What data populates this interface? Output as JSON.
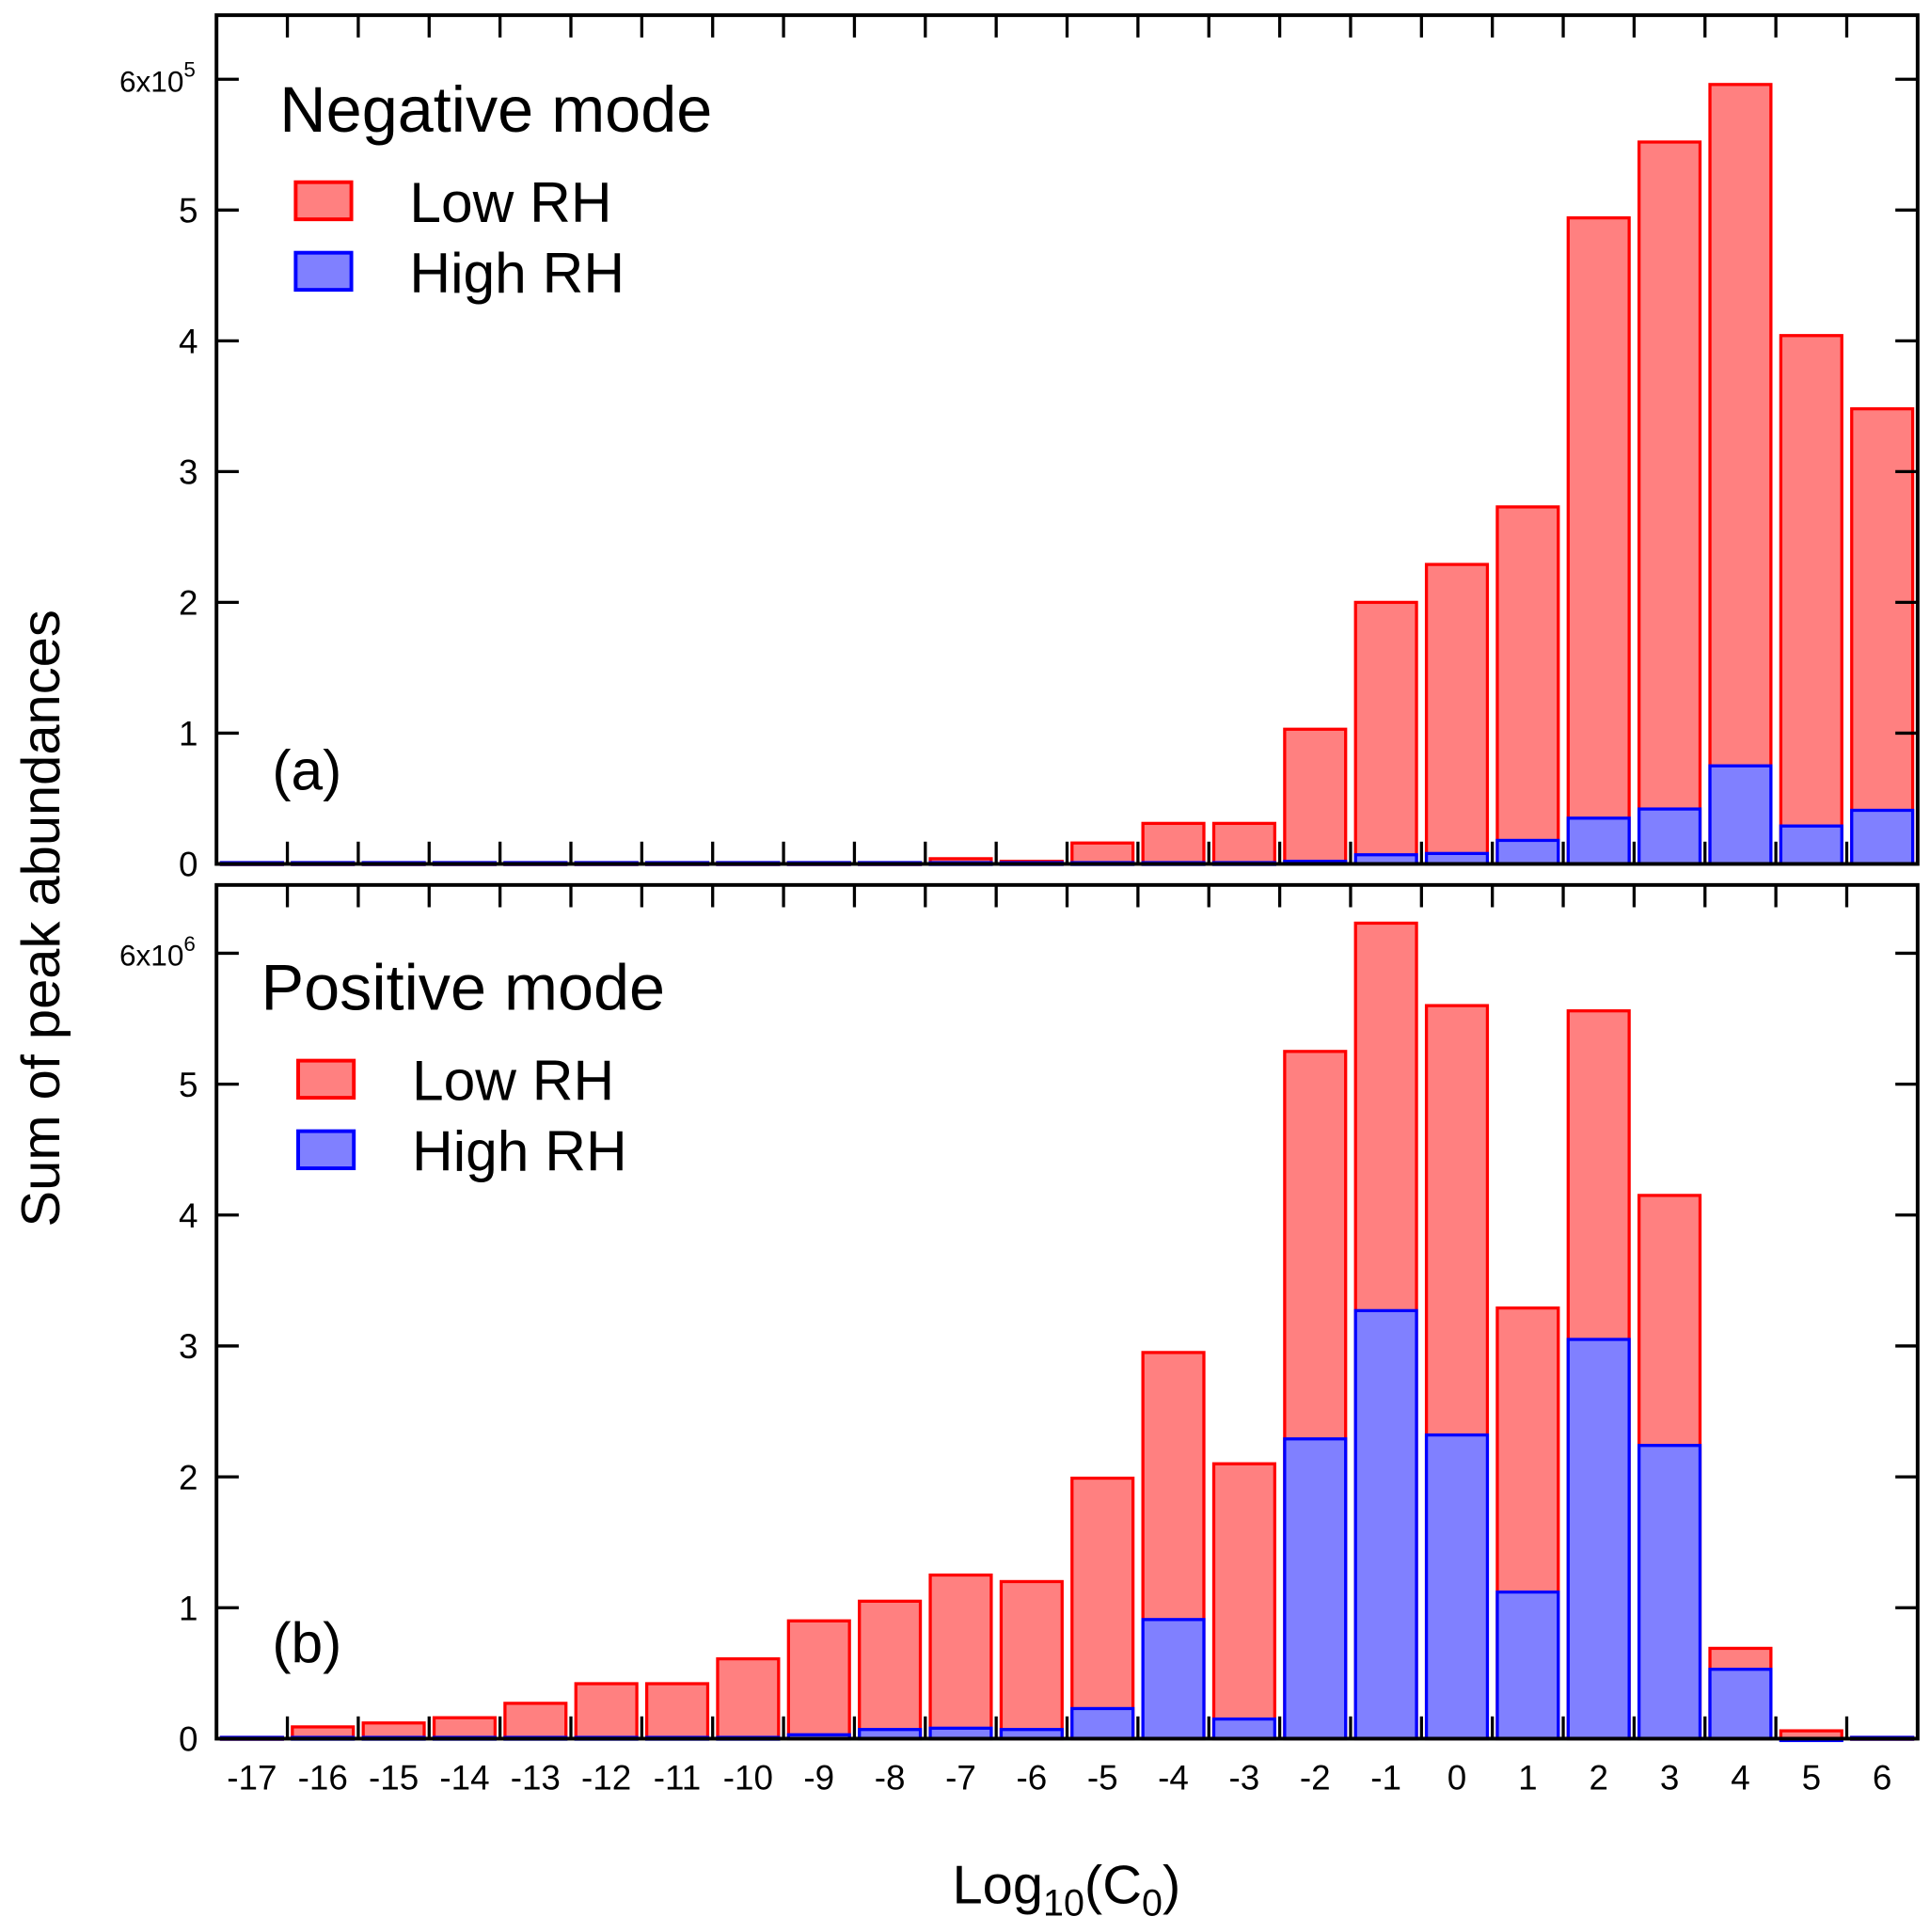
{
  "chart_data": [
    {
      "type": "bar",
      "panel_label": "(a)",
      "title": "Negative mode",
      "multiplier_label": {
        "base": "6x10",
        "exp": "5"
      },
      "ylabel": "Sum of peak abundances",
      "xlabel": "Log10(C0)",
      "ylim": [
        0,
        6.2
      ],
      "y_unit": 100000,
      "yticks": [
        0,
        1,
        2,
        3,
        4,
        5,
        6
      ],
      "ytick_labels": [
        "0",
        "1",
        "2",
        "3",
        "4",
        "5",
        "6x10^5"
      ],
      "categories": [
        "-17",
        "-16",
        "-15",
        "-14",
        "-13",
        "-12",
        "-11",
        "-10",
        "-9",
        "-8",
        "-7",
        "-6",
        "-5",
        "-4",
        "-3",
        "-2",
        "-1",
        "0",
        "1",
        "2",
        "3",
        "4",
        "5",
        "6"
      ],
      "series": [
        {
          "name": "Low RH",
          "color": "#ff8080",
          "edge": "#ff0000",
          "values": [
            0.01,
            0.01,
            0.01,
            0.01,
            0.01,
            0.01,
            0.01,
            0.01,
            0.01,
            0.01,
            0.04,
            0.02,
            0.16,
            0.31,
            0.31,
            1.03,
            2.0,
            2.29,
            2.73,
            4.94,
            5.52,
            5.96,
            4.04,
            3.48
          ]
        },
        {
          "name": "High RH",
          "color": "#8080ff",
          "edge": "#0000ff",
          "values": [
            0.01,
            0.01,
            0.01,
            0.01,
            0.01,
            0.01,
            0.01,
            0.01,
            0.01,
            0.01,
            0.01,
            0.01,
            0.01,
            0.01,
            0.01,
            0.02,
            0.07,
            0.08,
            0.18,
            0.35,
            0.42,
            0.75,
            0.29,
            0.41
          ]
        }
      ],
      "legend": [
        "Low RH",
        "High RH"
      ],
      "legend_position": "top-left"
    },
    {
      "type": "bar",
      "panel_label": "(b)",
      "title": "Positive mode",
      "multiplier_label": {
        "base": "6x10",
        "exp": "6"
      },
      "ylim": [
        0,
        6.52
      ],
      "y_unit": 1000000,
      "yticks": [
        0,
        1,
        2,
        3,
        4,
        5,
        6
      ],
      "ytick_labels": [
        "0",
        "1",
        "2",
        "3",
        "4",
        "5",
        "6x10^6"
      ],
      "xtick_labels": [
        "-17",
        "-16",
        "-15",
        "-14",
        "-13",
        "-12",
        "-11",
        "-10",
        "-9",
        "-8",
        "-7",
        "-6",
        "-5",
        "-4",
        "-3",
        "-2",
        "-1",
        "0",
        "1",
        "2",
        "3",
        "4",
        "5",
        "6"
      ],
      "categories": [
        "-17",
        "-16",
        "-15",
        "-14",
        "-13",
        "-12",
        "-11",
        "-10",
        "-9",
        "-8",
        "-7",
        "-6",
        "-5",
        "-4",
        "-3",
        "-2",
        "-1",
        "0",
        "1",
        "2",
        "3",
        "4",
        "5",
        "6"
      ],
      "series": [
        {
          "name": "Low RH",
          "color": "#ff8080",
          "edge": "#ff0000",
          "values": [
            0.01,
            0.09,
            0.12,
            0.16,
            0.27,
            0.42,
            0.42,
            0.61,
            0.9,
            1.05,
            1.25,
            1.2,
            1.99,
            2.95,
            2.1,
            5.25,
            6.23,
            5.6,
            3.29,
            5.56,
            4.15,
            0.69,
            0.06,
            0.01
          ]
        },
        {
          "name": "High RH",
          "color": "#8080ff",
          "edge": "#0000ff",
          "values": [
            0.01,
            0.01,
            0.01,
            0.01,
            0.01,
            0.01,
            0.01,
            0.01,
            0.03,
            0.07,
            0.08,
            0.07,
            0.23,
            0.91,
            0.15,
            2.29,
            3.27,
            2.32,
            1.12,
            3.05,
            2.24,
            0.53,
            0.0,
            0.01
          ]
        }
      ],
      "legend": [
        "Low RH",
        "High RH"
      ],
      "legend_position": "top-left"
    }
  ],
  "axis": {
    "ylabel": "Sum of peak abundances",
    "xlabel_main": "Log",
    "xlabel_sub": "10",
    "xlabel_paren_open": "(C",
    "xlabel_sub2": "0",
    "xlabel_paren_close": ")"
  }
}
